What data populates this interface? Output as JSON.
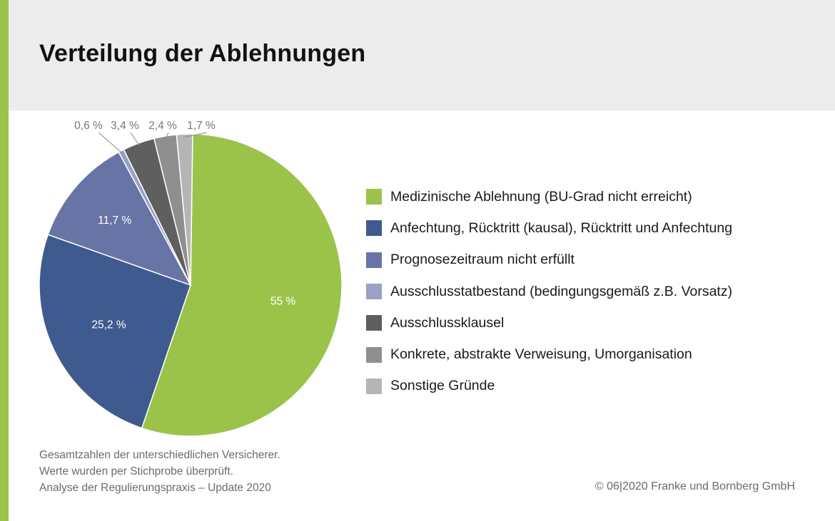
{
  "header": {
    "title": "Verteilung der Ablehnungen"
  },
  "chart_data": {
    "type": "pie",
    "title": "Verteilung der Ablehnungen",
    "slices": [
      {
        "label": "Medizinische Ablehnung (BU-Grad nicht erreicht)",
        "value": 55,
        "display": "55 %",
        "color": "#9bc34a",
        "label_color": "#ffffff"
      },
      {
        "label": "Anfechtung, Rücktritt (kausal), Rücktritt und Anfechtung",
        "value": 25.2,
        "display": "25,2 %",
        "color": "#3f5a8e",
        "label_color": "#ffffff"
      },
      {
        "label": "Prognosezeitraum nicht erfüllt",
        "value": 11.7,
        "display": "11,7 %",
        "color": "#6874a5",
        "label_color": "#ffffff"
      },
      {
        "label": "Ausschlusstatbestand (bedingungsgemäß z.B. Vorsatz)",
        "value": 0.6,
        "display": "0,6 %",
        "color": "#9aa0c7",
        "label_color": "#777777"
      },
      {
        "label": "Ausschlussklausel",
        "value": 3.4,
        "display": "3,4 %",
        "color": "#5f5f5f",
        "label_color": "#777777"
      },
      {
        "label": "Konkrete, abstrakte Verweisung, Umorganisation",
        "value": 2.4,
        "display": "2,4 %",
        "color": "#8f8f8f",
        "label_color": "#777777"
      },
      {
        "label": "Sonstige Gründe",
        "value": 1.7,
        "display": "1,7 %",
        "color": "#b5b5b5",
        "label_color": "#777777"
      }
    ],
    "legend_position": "right"
  },
  "footnote": {
    "lines": [
      "Gesamtzahlen der unterschiedlichen Versicherer.",
      "Werte wurden per Stichprobe überprüft.",
      "Analyse der Regulierungspraxis – Update 2020"
    ]
  },
  "copyright": "© 06|2020 Franke und Bornberg GmbH"
}
